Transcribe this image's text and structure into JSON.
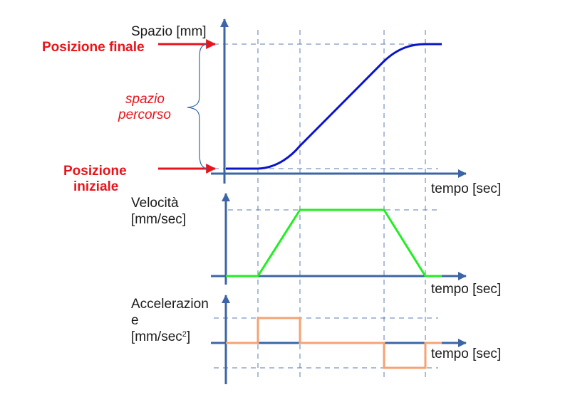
{
  "labels": {
    "space_axis": "Spazio [mm]",
    "final_position": "Posizione finale",
    "initial_position_1": "Posizione",
    "initial_position_2": "iniziale",
    "distance_1": "spazio",
    "distance_2": "percorso",
    "time_axis_1": "tempo [sec]",
    "velocity_1": "Velocità",
    "velocity_2": "[mm/sec]",
    "time_axis_2": "tempo [sec]",
    "acceleration_1": "Accelerazion",
    "acceleration_2": "e",
    "acceleration_3": "[mm/sec",
    "acceleration_sup": "2",
    "acceleration_4": "]",
    "time_axis_3": "tempo [sec]"
  },
  "colors": {
    "axis": "#3b65a6",
    "guide": "#3b65a6",
    "space_curve": "#0a14c8",
    "velocity_curve": "#22ee22",
    "acceleration_curve": "#f4a373",
    "annotation": "#e8141b",
    "brace": "#3b65a6"
  }
}
